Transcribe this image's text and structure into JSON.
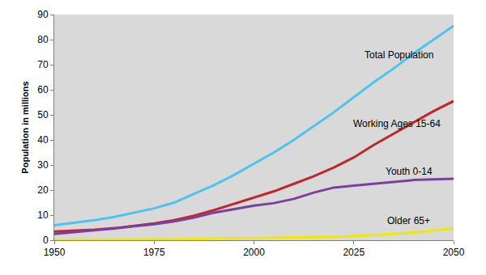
{
  "chart_data": {
    "type": "line",
    "y_label": "Population in millions",
    "x": [
      1950,
      1955,
      1960,
      1965,
      1970,
      1975,
      1980,
      1985,
      1990,
      1995,
      2000,
      2005,
      2010,
      2015,
      2020,
      2025,
      2030,
      2035,
      2040,
      2045,
      2050
    ],
    "series": [
      {
        "name": "Total Population",
        "color": "#4dc3f0",
        "values": [
          6,
          7,
          8,
          9.3,
          11,
          12.7,
          15,
          18.5,
          22,
          26,
          30.5,
          35,
          40,
          45.5,
          51,
          57,
          63,
          68.5,
          74.5,
          80,
          85.5
        ]
      },
      {
        "name": "Working Ages 15-64",
        "color": "#c0272d",
        "values": [
          3.5,
          3.8,
          4.2,
          4.8,
          5.7,
          6.7,
          8,
          9.8,
          12,
          14.5,
          17,
          19.5,
          22.5,
          25.5,
          29,
          33,
          38,
          42.5,
          47,
          51.5,
          55.5
        ]
      },
      {
        "name": "Youth 0-14",
        "color": "#7b3fa0",
        "values": [
          2.5,
          3.2,
          4,
          4.7,
          5.6,
          6.4,
          7.5,
          9,
          11,
          12.5,
          13.8,
          14.8,
          16.5,
          19,
          21,
          21.8,
          22.5,
          23.2,
          24,
          24.3,
          24.5
        ]
      },
      {
        "name": "Older 65+",
        "color": "#f0e800",
        "values": [
          0.1,
          0.1,
          0.15,
          0.2,
          0.25,
          0.3,
          0.35,
          0.45,
          0.5,
          0.6,
          0.7,
          0.8,
          0.9,
          1.1,
          1.3,
          1.6,
          2.0,
          2.5,
          3.1,
          3.8,
          4.7
        ]
      }
    ],
    "xlim": [
      1950,
      2050
    ],
    "xticks": [
      1950,
      1975,
      2000,
      2025,
      2050
    ],
    "ylim": [
      0,
      90
    ],
    "yticks": [
      0,
      10,
      20,
      30,
      40,
      50,
      60,
      70,
      80,
      90
    ],
    "grid": false
  }
}
